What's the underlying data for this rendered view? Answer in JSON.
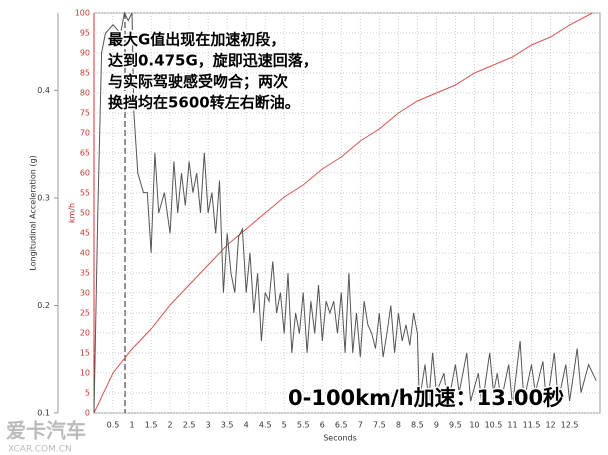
{
  "chart_data": {
    "type": "line",
    "xlabel": "Seconds",
    "ylabel": "km/h",
    "y2label": "Longitudinal Acceleration (g)",
    "xlim": [
      0,
      13.3
    ],
    "xticks": [
      0.5,
      1,
      1.5,
      2,
      2.5,
      3,
      3.5,
      4,
      4.5,
      5,
      5.5,
      6,
      6.5,
      7,
      7.5,
      8,
      8.5,
      9,
      9.5,
      10,
      10.5,
      11,
      11.5,
      12,
      12.5
    ],
    "ylim": [
      0,
      100
    ],
    "yticks": [
      0,
      5,
      10,
      15,
      20,
      25,
      30,
      35,
      40,
      45,
      50,
      55,
      60,
      65,
      70,
      75,
      80,
      85,
      90,
      95,
      100
    ],
    "y2lim": [
      0.1,
      0.472
    ],
    "y2ticks": [
      0.1,
      0.2,
      0.3,
      0.4
    ],
    "grid": true,
    "series": [
      {
        "color": "#d9534f",
        "x": [
          0,
          0.5,
          1,
          1.5,
          2,
          2.5,
          3,
          3.5,
          4,
          4.5,
          5,
          5.5,
          6,
          6.5,
          7,
          7.5,
          8,
          8.5,
          9,
          9.5,
          10,
          10.5,
          11,
          11.5,
          12,
          12.5,
          13.1
        ],
        "values": [
          0,
          10,
          16,
          21,
          27,
          32,
          37,
          42,
          46,
          50,
          54,
          57,
          61,
          64,
          68,
          71,
          75,
          78,
          80,
          82,
          85,
          87,
          89,
          92,
          94,
          97,
          100
        ]
      },
      {
        "color": "#555555",
        "axis": "y2",
        "x": [
          0,
          0.1,
          0.2,
          0.3,
          0.5,
          0.7,
          0.8,
          0.9,
          1.0,
          1.05,
          1.15,
          1.3,
          1.4,
          1.5,
          1.6,
          1.7,
          1.85,
          2.0,
          2.1,
          2.2,
          2.3,
          2.4,
          2.5,
          2.6,
          2.7,
          2.8,
          2.9,
          3.0,
          3.1,
          3.2,
          3.3,
          3.4,
          3.5,
          3.6,
          3.7,
          3.8,
          3.9,
          4.0,
          4.1,
          4.2,
          4.3,
          4.4,
          4.5,
          4.6,
          4.7,
          4.8,
          4.9,
          5.0,
          5.1,
          5.2,
          5.3,
          5.4,
          5.5,
          5.6,
          5.7,
          5.8,
          5.9,
          6.0,
          6.1,
          6.2,
          6.3,
          6.4,
          6.5,
          6.6,
          6.7,
          6.8,
          6.9,
          7.0,
          7.1,
          7.2,
          7.3,
          7.4,
          7.5,
          7.6,
          7.7,
          7.8,
          7.9,
          8.0,
          8.1,
          8.2,
          8.3,
          8.4,
          8.5,
          8.55,
          8.7,
          8.8,
          8.9,
          9.0,
          9.2,
          9.3,
          9.5,
          9.6,
          9.8,
          9.9,
          10.1,
          10.2,
          10.4,
          10.5,
          10.6,
          10.7,
          10.9,
          11.0,
          11.2,
          11.3,
          11.5,
          11.6,
          11.8,
          11.9,
          12.1,
          12.2,
          12.4,
          12.5,
          12.7,
          12.8,
          13.0,
          13.2
        ],
        "values": [
          0.1,
          0.286,
          0.435,
          0.453,
          0.461,
          0.453,
          0.472,
          0.465,
          0.472,
          0.379,
          0.323,
          0.305,
          0.305,
          0.249,
          0.342,
          0.286,
          0.305,
          0.267,
          0.334,
          0.286,
          0.323,
          0.293,
          0.334,
          0.305,
          0.323,
          0.286,
          0.342,
          0.286,
          0.305,
          0.267,
          0.316,
          0.212,
          0.267,
          0.23,
          0.212,
          0.264,
          0.271,
          0.212,
          0.249,
          0.193,
          0.23,
          0.167,
          0.212,
          0.204,
          0.241,
          0.193,
          0.212,
          0.174,
          0.23,
          0.156,
          0.193,
          0.174,
          0.212,
          0.156,
          0.204,
          0.174,
          0.219,
          0.167,
          0.204,
          0.193,
          0.204,
          0.174,
          0.212,
          0.156,
          0.23,
          0.156,
          0.193,
          0.152,
          0.204,
          0.182,
          0.174,
          0.16,
          0.193,
          0.152,
          0.174,
          0.2,
          0.156,
          0.193,
          0.167,
          0.182,
          0.163,
          0.193,
          0.174,
          0.111,
          0.145,
          0.111,
          0.156,
          0.119,
          0.137,
          0.107,
          0.145,
          0.119,
          0.156,
          0.111,
          0.137,
          0.107,
          0.156,
          0.119,
          0.137,
          0.111,
          0.145,
          0.107,
          0.167,
          0.111,
          0.145,
          0.119,
          0.148,
          0.107,
          0.156,
          0.111,
          0.145,
          0.111,
          0.16,
          0.119,
          0.145,
          0.13
        ]
      }
    ],
    "annotations": [
      "最大G值出现在加速初段，",
      "达到0.475G，旋即迅速回落，",
      "与实际驾驶感受吻合；两次",
      "换挡均在5600转左右断油。"
    ],
    "result": "0-100km/h加速：13.00秒",
    "watermark": [
      "爱卡汽车",
      "XCAR.COM.CN"
    ]
  }
}
